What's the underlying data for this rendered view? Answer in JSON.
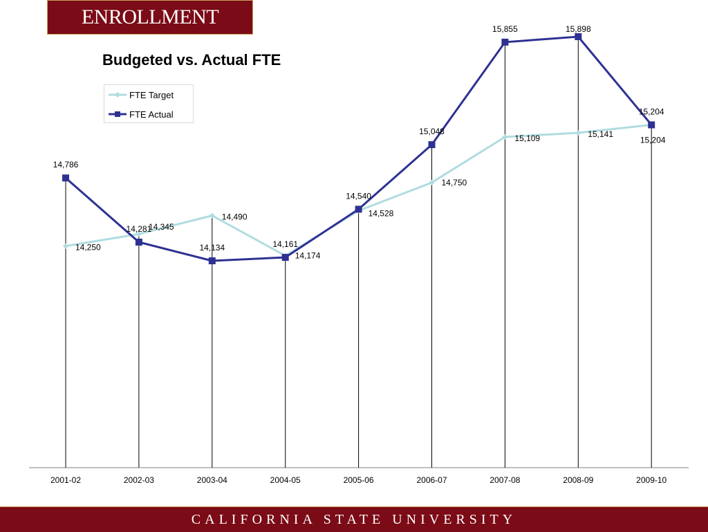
{
  "header": {
    "title": "ENROLLMENT"
  },
  "footer": {
    "text": "CALIFORNIA STATE UNIVERSITY"
  },
  "colors": {
    "brand": "#7b0b16",
    "target_line": "#b0dce0",
    "actual_line": "#2e3192"
  },
  "chart_data": {
    "type": "line",
    "title": "Budgeted vs. Actual FTE",
    "xlabel": "",
    "ylabel": "",
    "categories": [
      "2001-02",
      "2002-03",
      "2003-04",
      "2004-05",
      "2005-06",
      "2006-07",
      "2007-08",
      "2008-09",
      "2009-10"
    ],
    "series": [
      {
        "name": "FTE Target",
        "values": [
          14250,
          14345,
          14490,
          14174,
          14528,
          14750,
          15109,
          15141,
          15204
        ],
        "labels": [
          "14,250",
          "14,345",
          "14,490",
          "14,174",
          "14,528",
          "14,750",
          "15,109",
          "15,141",
          "15,204"
        ]
      },
      {
        "name": "FTE Actual",
        "values": [
          14786,
          14281,
          14134,
          14161,
          14540,
          15048,
          15855,
          15898,
          15204
        ],
        "labels": [
          "14,786",
          "14,281",
          "14,134",
          "14,161",
          "14,540",
          "15,048",
          "15,855",
          "15,898",
          "15,204"
        ]
      }
    ],
    "legend": "top-left",
    "grid": false
  }
}
